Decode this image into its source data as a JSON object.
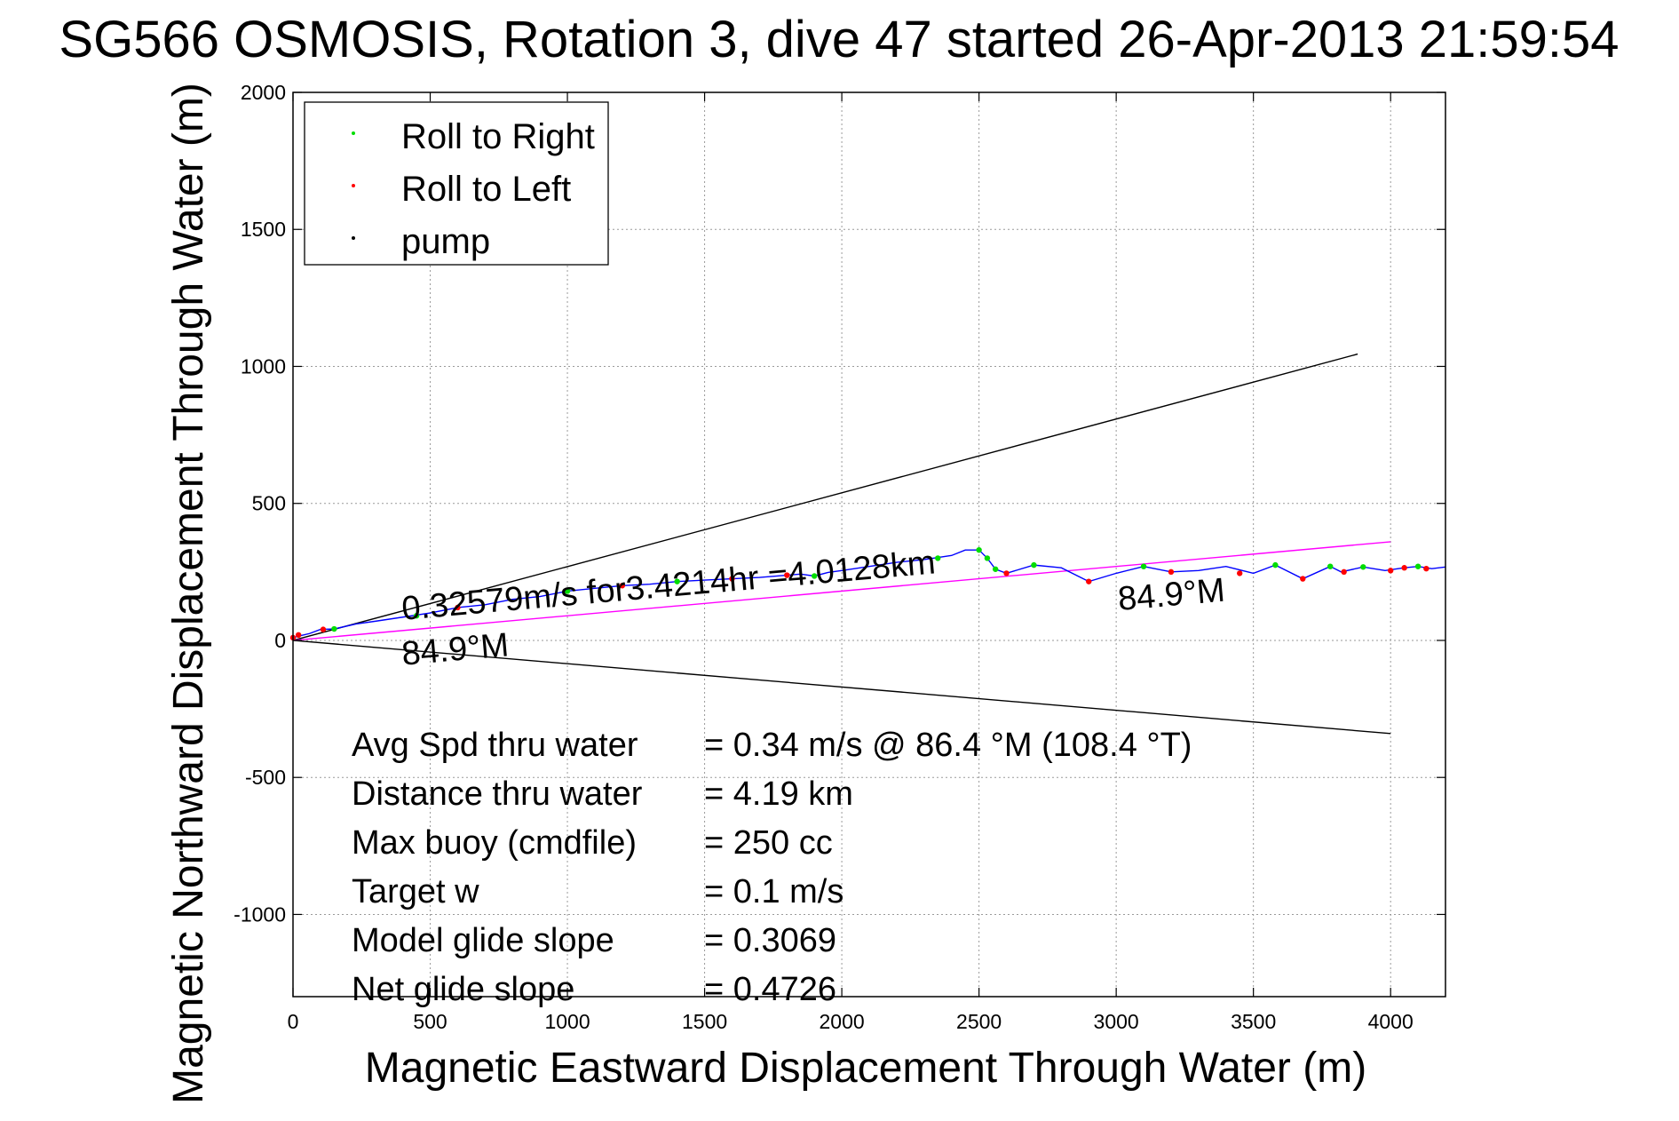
{
  "chart_data": {
    "type": "scatter",
    "title": "SG566 OSMOSIS, Rotation 3, dive 47 started 26-Apr-2013 21:59:54",
    "xlabel": "Magnetic Eastward Displacement Through Water (m)",
    "ylabel": "Magnetic Northward Displacement Through Water (m)",
    "xlim": [
      0,
      4200
    ],
    "ylim": [
      -1300,
      2000
    ],
    "grid": true,
    "x_ticks": [
      0,
      500,
      1000,
      1500,
      2000,
      2500,
      3000,
      3500,
      4000
    ],
    "y_ticks": [
      2000,
      1500,
      1000,
      500,
      0,
      -500,
      -1000
    ],
    "x_tick_labels": [
      "0",
      "500",
      "1000",
      "1500",
      "2000",
      "2500",
      "3000",
      "3500",
      "4000"
    ],
    "y_tick_labels": [
      "2000",
      "1500",
      "1000",
      "500",
      "0",
      "-500",
      "-1000"
    ],
    "legend": {
      "placement": "top-left",
      "entries": [
        {
          "label": "Roll to Right",
          "color": "#00dd00"
        },
        {
          "label": "Roll to Left",
          "color": "#ff0000"
        },
        {
          "label": "pump",
          "color": "#000000"
        }
      ]
    },
    "track": {
      "color": "#0000ff",
      "x": [
        0,
        30,
        60,
        100,
        150,
        230,
        300,
        400,
        500,
        600,
        700,
        800,
        900,
        1000,
        1100,
        1200,
        1300,
        1400,
        1500,
        1600,
        1700,
        1800,
        1850,
        1900,
        1950,
        2000,
        2100,
        2200,
        2300,
        2400,
        2450,
        2500,
        2530,
        2560,
        2600,
        2700,
        2800,
        2900,
        3000,
        3100,
        3200,
        3300,
        3400,
        3500,
        3580,
        3680,
        3780,
        3820,
        3900,
        3980,
        4050,
        4100,
        4150,
        4200
      ],
      "y": [
        10,
        18,
        25,
        40,
        42,
        60,
        70,
        85,
        100,
        120,
        130,
        150,
        160,
        180,
        190,
        200,
        205,
        215,
        220,
        225,
        230,
        238,
        242,
        235,
        248,
        255,
        270,
        285,
        295,
        310,
        330,
        330,
        300,
        260,
        245,
        275,
        265,
        215,
        245,
        270,
        250,
        255,
        270,
        245,
        275,
        225,
        270,
        250,
        268,
        255,
        265,
        270,
        262,
        268
      ]
    },
    "roll_right_points": {
      "color": "#00dd00",
      "x": [
        150,
        450,
        1000,
        1400,
        1900,
        2350,
        2500,
        2530,
        2560,
        2700,
        3100,
        3580,
        3780,
        3900,
        4100
      ],
      "y": [
        42,
        90,
        180,
        215,
        235,
        300,
        330,
        300,
        260,
        275,
        270,
        275,
        270,
        268,
        270
      ]
    },
    "roll_left_points": {
      "color": "#ff0000",
      "x": [
        0,
        20,
        110,
        600,
        1200,
        1600,
        1800,
        2600,
        2900,
        3200,
        3450,
        3680,
        3830,
        4000,
        4050,
        4130
      ],
      "y": [
        10,
        20,
        40,
        120,
        200,
        225,
        238,
        245,
        215,
        250,
        245,
        225,
        250,
        255,
        265,
        262
      ]
    },
    "reference_lines": [
      {
        "name": "upper_bound",
        "color": "#000000",
        "x": [
          0,
          3880
        ],
        "y": [
          0,
          1045
        ]
      },
      {
        "name": "lower_bound",
        "color": "#000000",
        "x": [
          0,
          4000
        ],
        "y": [
          0,
          -340
        ]
      },
      {
        "name": "mean_course",
        "color": "#ff00ff",
        "x": [
          0,
          4000
        ],
        "y": [
          0,
          360
        ]
      }
    ],
    "annotations": [
      {
        "text": "0.32579m/s for3.4214hr =4.0128km",
        "x": 400,
        "y": 75,
        "rotate": -5
      },
      {
        "text": "84.9°M",
        "x": 400,
        "y": -90,
        "rotate": -5
      },
      {
        "text": "84.9°M",
        "x": 3010,
        "y": 110,
        "rotate": -5
      }
    ],
    "stats": [
      {
        "label": "Avg Spd thru water",
        "value": "=  0.34 m/s @  86.4 °M (108.4 °T)"
      },
      {
        "label": "Distance thru water",
        "value": "=  4.19 km"
      },
      {
        "label": "Max buoy (cmdfile)",
        "value": "= 250 cc"
      },
      {
        "label": "Target w",
        "value": "= 0.1 m/s"
      },
      {
        "label": "Model glide slope",
        "value": "= 0.3069"
      },
      {
        "label": "Net glide slope",
        "value": "= 0.4726"
      }
    ]
  }
}
